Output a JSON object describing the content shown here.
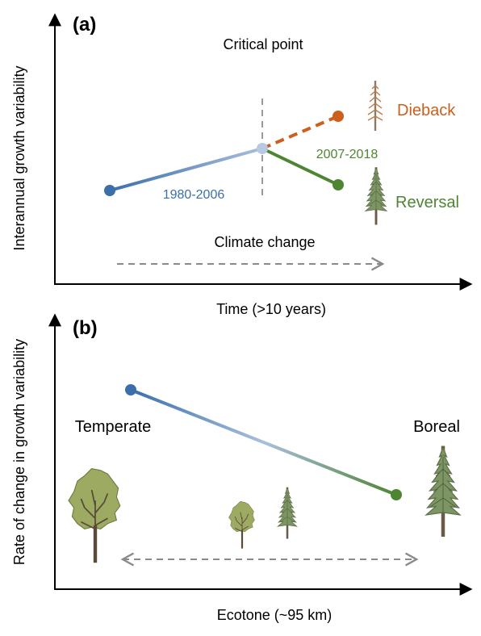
{
  "panel_a": {
    "label": "(a)",
    "y_axis_label": "Interannual growth variability",
    "x_axis_label": "Time (>10 years)",
    "critical_point_label": "Critical point",
    "period1_label": "1980-2006",
    "period2_label": "2007-2018",
    "dieback_label": "Dieback",
    "reversal_label": "Reversal",
    "climate_change_label": "Climate change",
    "colors": {
      "period1": "#3a6fac",
      "dieback": "#cc5f1d",
      "reversal": "#4e8533",
      "critical": "#a9bfdc"
    }
  },
  "panel_b": {
    "label": "(b)",
    "y_axis_label": "Rate of change in growth variability",
    "x_axis_label": "Ecotone (~95 km)",
    "temperate_label": "Temperate",
    "boreal_label": "Boreal",
    "colors": {
      "start": "#3a6fac",
      "end": "#4e8533"
    }
  },
  "icons": [
    "dead-conifer-icon",
    "conifer-icon",
    "broadleaf-tree-icon"
  ]
}
